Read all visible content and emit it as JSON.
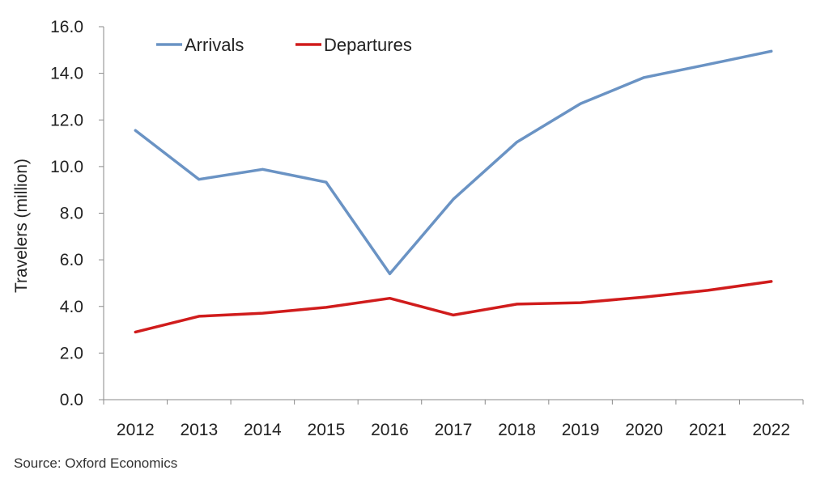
{
  "chart_data": {
    "type": "line",
    "title": "",
    "xlabel": "",
    "ylabel": "Travelers (million)",
    "x": [
      "2012",
      "2013",
      "2014",
      "2015",
      "2016",
      "2017",
      "2018",
      "2019",
      "2020",
      "2021",
      "2022"
    ],
    "ylim": [
      0,
      16
    ],
    "yticks": [
      "0.0",
      "2.0",
      "4.0",
      "6.0",
      "8.0",
      "10.0",
      "12.0",
      "14.0",
      "16.0"
    ],
    "grid": false,
    "legend": "top-left",
    "series": [
      {
        "name": "Arrivals",
        "color": "#6a93c4",
        "values": [
          11.55,
          9.45,
          9.88,
          9.33,
          5.4,
          8.6,
          11.05,
          12.7,
          13.82,
          14.38,
          14.95
        ]
      },
      {
        "name": "Departures",
        "color": "#d01c1c",
        "values": [
          2.9,
          3.58,
          3.71,
          3.96,
          4.35,
          3.63,
          4.1,
          4.16,
          4.4,
          4.69,
          5.07
        ]
      }
    ]
  },
  "source": "Source:  Oxford Economics"
}
